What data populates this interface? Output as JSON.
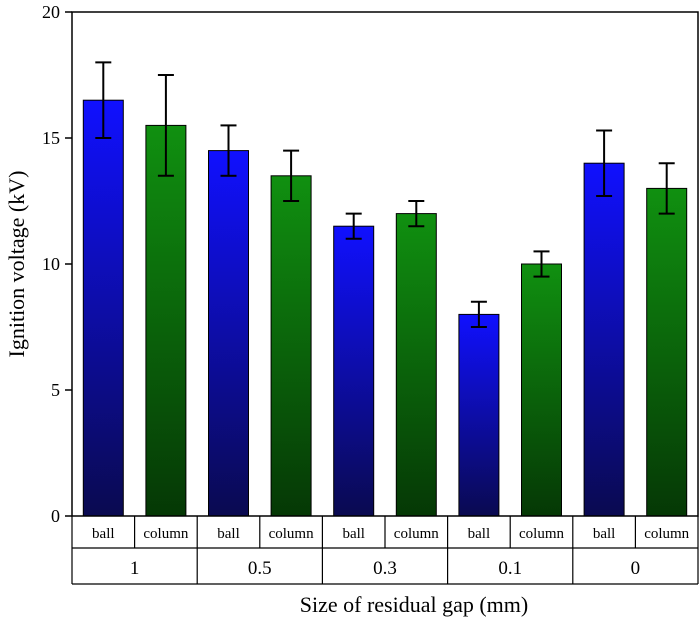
{
  "chart_data": {
    "type": "bar",
    "title": "",
    "xlabel": "Size of residual gap (mm)",
    "ylabel": "Ignition voltage (kV)",
    "ylim": [
      0,
      20
    ],
    "yticks": [
      0,
      5,
      10,
      15,
      20
    ],
    "groups": [
      "1",
      "0.5",
      "0.3",
      "0.1",
      "0"
    ],
    "series": [
      {
        "name": "ball",
        "color_top": "#1010ff",
        "color_bottom": "#0a0a50",
        "values": [
          16.5,
          14.5,
          11.5,
          8.0,
          14.0
        ],
        "error_low": [
          15.0,
          13.5,
          11.0,
          7.5,
          12.7
        ],
        "error_high": [
          18.0,
          15.5,
          12.0,
          8.5,
          15.3
        ]
      },
      {
        "name": "column",
        "color_top": "#109010",
        "color_bottom": "#053805",
        "values": [
          15.5,
          13.5,
          12.0,
          10.0,
          13.0
        ],
        "error_low": [
          13.5,
          12.5,
          11.5,
          9.5,
          12.0
        ],
        "error_high": [
          17.5,
          14.5,
          12.5,
          10.5,
          14.0
        ]
      }
    ],
    "grid": false,
    "legend": "none"
  }
}
